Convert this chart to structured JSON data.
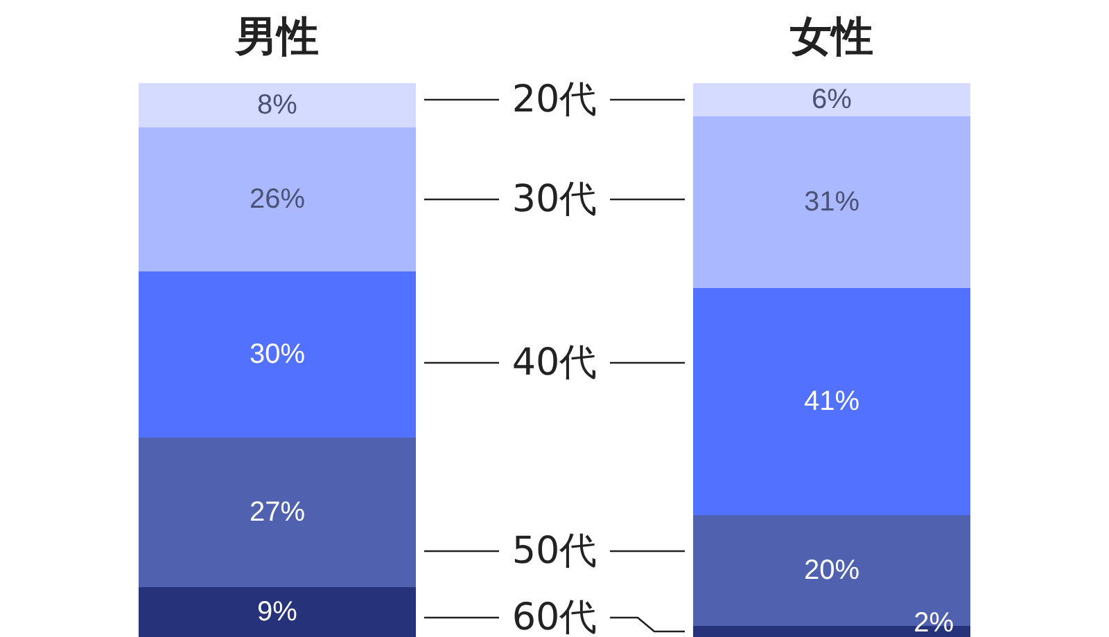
{
  "chart_data": {
    "type": "bar",
    "categories": [
      "男性",
      "女性"
    ],
    "stacked": true,
    "tick_labels": "x",
    "series": [
      {
        "name": "60代",
        "color": "#26337a",
        "values": [
          9,
          2
        ],
        "value_labels": [
          "9%",
          "2%"
        ]
      },
      {
        "name": "50代",
        "color": "#5061b0",
        "values": [
          27,
          20
        ],
        "value_labels": [
          "27%",
          "20%"
        ]
      },
      {
        "name": "40代",
        "color": "#5271ff",
        "values": [
          30,
          41
        ],
        "value_labels": [
          "30%",
          "41%"
        ]
      },
      {
        "name": "30代",
        "color": "#a9b8ff",
        "values": [
          26,
          31
        ],
        "value_labels": [
          "26%",
          "31%"
        ]
      },
      {
        "name": "20代",
        "color": "#d5dbff",
        "values": [
          8,
          6
        ],
        "value_labels": [
          "8%",
          "6%"
        ]
      }
    ]
  }
}
